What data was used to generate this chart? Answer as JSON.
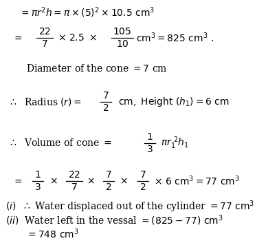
{
  "bg_color": "#ffffff",
  "text_color": "#000000",
  "figsize": [
    3.9,
    3.53
  ],
  "dpi": 100,
  "fs": 10.0,
  "fs_small": 9.0
}
